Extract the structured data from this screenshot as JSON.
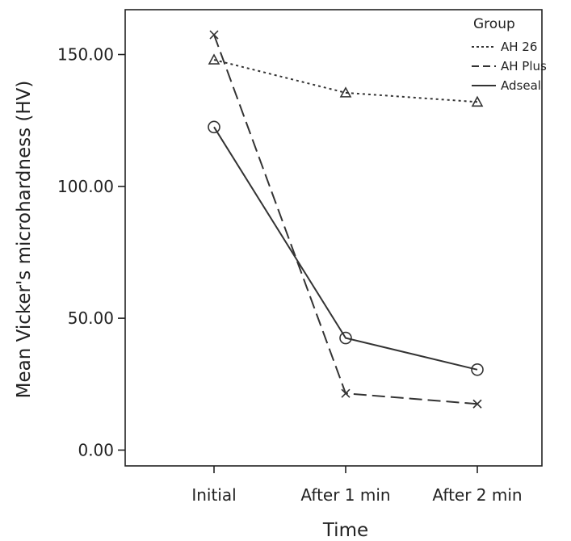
{
  "chart_data": {
    "type": "line",
    "title": "",
    "xlabel": "Time",
    "ylabel": "Mean Vicker's microhardness (HV)",
    "categories": [
      "Initial",
      "After 1 min",
      "After 2 min"
    ],
    "ylim": [
      -6,
      167
    ],
    "yticks": [
      0,
      50,
      100,
      150
    ],
    "ytick_labels": [
      "0.00",
      "50.00",
      "100.00",
      "150.00"
    ],
    "grid": false,
    "legend": {
      "title": "Group",
      "position": "top-right"
    },
    "series": [
      {
        "name": "AH 26",
        "values": [
          148.0,
          135.5,
          132.0
        ],
        "dash": "dotted",
        "marker": "triangle"
      },
      {
        "name": "AH Plus",
        "values": [
          157.5,
          21.5,
          17.5
        ],
        "dash": "dashed",
        "marker": "x"
      },
      {
        "name": "Adseal",
        "values": [
          122.5,
          42.5,
          30.5
        ],
        "dash": "solid",
        "marker": "circle"
      }
    ],
    "colors": {
      "line": "#333333",
      "axis": "#222222",
      "background": "#ffffff"
    }
  }
}
